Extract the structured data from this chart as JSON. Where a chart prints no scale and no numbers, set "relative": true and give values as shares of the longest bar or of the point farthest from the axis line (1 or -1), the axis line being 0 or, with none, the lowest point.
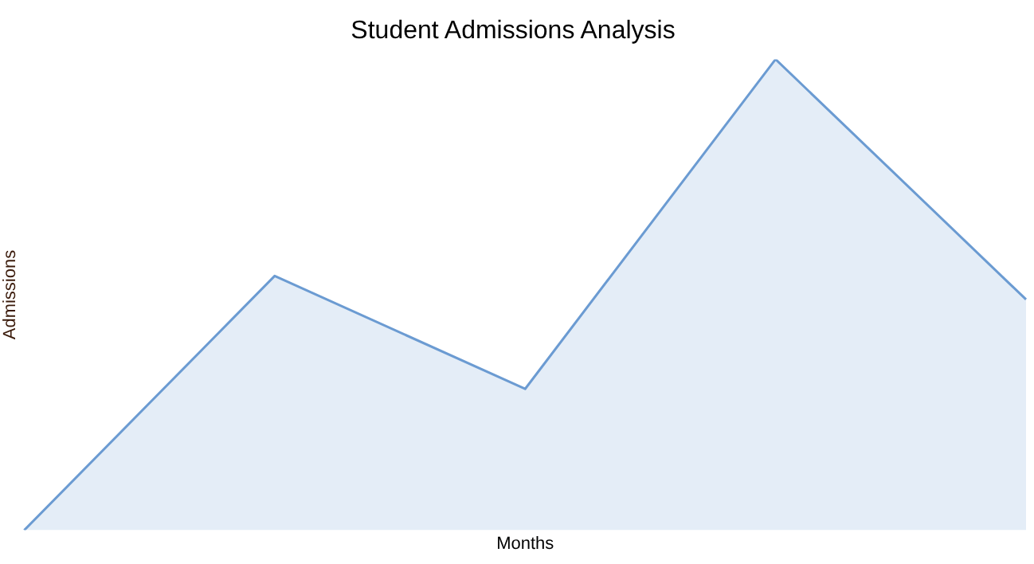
{
  "chart_data": {
    "type": "area",
    "title": "Student Admissions Analysis",
    "xlabel": "Months",
    "ylabel": "Admissions",
    "relative": true,
    "categories": [
      null,
      null,
      null,
      null,
      null
    ],
    "series": [
      {
        "color": "#6b9bd2",
        "values": [
          0,
          0.54,
          0.3,
          1,
          0.49
        ]
      }
    ],
    "grid": false,
    "legend": false
  }
}
